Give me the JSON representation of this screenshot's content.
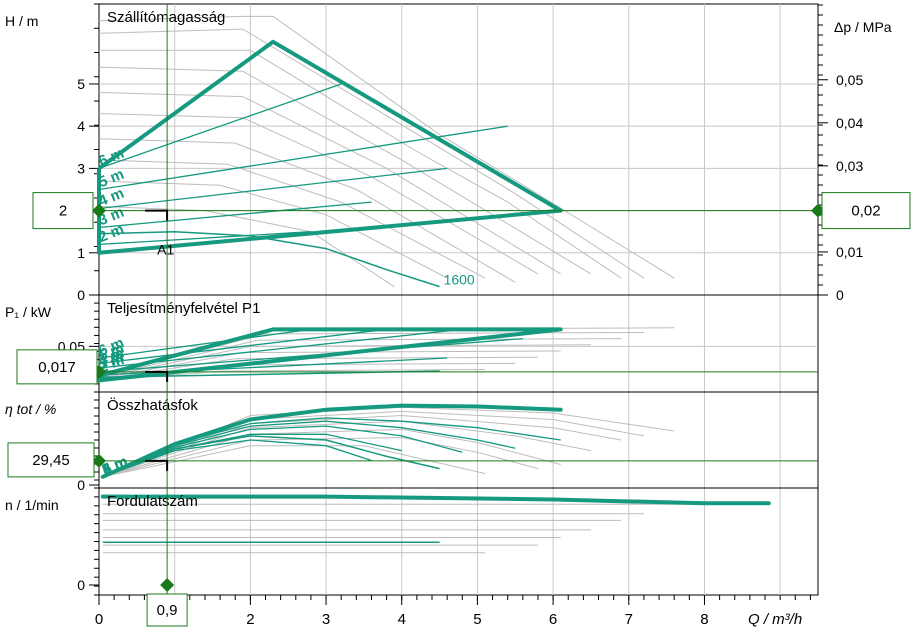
{
  "chart_data": {
    "type": "line",
    "xlabel": "Q / m³/h",
    "x_ticks": [
      "0",
      "1",
      "2",
      "3",
      "4",
      "5",
      "6",
      "7",
      "8"
    ],
    "xlim": [
      0,
      9.5
    ],
    "operating_point": {
      "q": "0,9",
      "head": "2",
      "dp": "0,02",
      "power": "0,017",
      "efficiency": "29,45",
      "label": "A1"
    },
    "accent_color": "#15997f",
    "marker_color": "#1a7a1a",
    "grid_color": "#c8c8c8",
    "panels": [
      {
        "id": "head",
        "title": "Szállítómagasság",
        "ylabel": "H / m",
        "ylabel_right": "Δp / MPa",
        "ylim": [
          0,
          6.8
        ],
        "y_ticks": [
          {
            "v": 0,
            "t": "0"
          },
          {
            "v": 1,
            "t": "1"
          },
          {
            "v": 2,
            "t": "2"
          },
          {
            "v": 3,
            "t": "3"
          },
          {
            "v": 4,
            "t": "4"
          },
          {
            "v": 5,
            "t": "5"
          }
        ],
        "y_ticks_right": [
          {
            "v": 0,
            "t": "0"
          },
          {
            "v": 1.02,
            "t": "0,01"
          },
          {
            "v": 2.04,
            "t": "0,02"
          },
          {
            "v": 3.06,
            "t": "0,03"
          },
          {
            "v": 4.08,
            "t": "0,04"
          },
          {
            "v": 5.1,
            "t": "0,05"
          }
        ],
        "envelope": [
          [
            0,
            3.0
          ],
          [
            2.3,
            6.0
          ],
          [
            6.1,
            2.0
          ],
          [
            0,
            1.0
          ]
        ],
        "setpoint_lines": [
          {
            "label": "2 m",
            "pts": [
              [
                0,
                1.2
              ],
              [
                2.8,
                1.5
              ]
            ]
          },
          {
            "label": "3 m",
            "pts": [
              [
                0,
                1.6
              ],
              [
                3.6,
                2.2
              ]
            ]
          },
          {
            "label": "4 m",
            "pts": [
              [
                0,
                2.05
              ],
              [
                4.6,
                3.0
              ]
            ]
          },
          {
            "label": "5 m",
            "pts": [
              [
                0,
                2.5
              ],
              [
                5.4,
                4.0
              ]
            ]
          },
          {
            "label": "6 m",
            "pts": [
              [
                0,
                3.0
              ],
              [
                3.2,
                5.0
              ]
            ]
          }
        ],
        "speed_curve": {
          "label": "1600",
          "pts": [
            [
              0,
              1.45
            ],
            [
              1,
              1.5
            ],
            [
              2,
              1.4
            ],
            [
              3,
              1.1
            ],
            [
              3.8,
              0.6
            ],
            [
              4.5,
              0.2
            ]
          ]
        },
        "grey_curves": [
          [
            [
              0,
              6.5
            ],
            [
              1.9,
              6.6
            ],
            [
              2.3,
              6.6
            ],
            [
              4.5,
              3.8
            ],
            [
              5.7,
              2.5
            ],
            [
              7.6,
              0.4
            ]
          ],
          [
            [
              0,
              6.2
            ],
            [
              1.9,
              6.3
            ],
            [
              4.4,
              3.6
            ],
            [
              5.5,
              2.4
            ],
            [
              7.2,
              0.4
            ]
          ],
          [
            [
              0,
              5.8
            ],
            [
              2.0,
              5.8
            ],
            [
              4.2,
              3.4
            ],
            [
              5.4,
              2.2
            ],
            [
              6.9,
              0.4
            ]
          ],
          [
            [
              0,
              5.4
            ],
            [
              1.9,
              5.3
            ],
            [
              4.0,
              3.2
            ],
            [
              6.5,
              0.5
            ]
          ],
          [
            [
              0,
              4.8
            ],
            [
              1.9,
              4.7
            ],
            [
              3.8,
              3.0
            ],
            [
              6.1,
              0.5
            ]
          ],
          [
            [
              0,
              4.3
            ],
            [
              1.9,
              4.2
            ],
            [
              3.6,
              2.8
            ],
            [
              5.8,
              0.5
            ]
          ],
          [
            [
              0,
              3.7
            ],
            [
              1.8,
              3.6
            ],
            [
              3.4,
              2.5
            ],
            [
              5.5,
              0.3
            ]
          ],
          [
            [
              0,
              3.2
            ],
            [
              1.7,
              3.1
            ],
            [
              3.2,
              2.2
            ],
            [
              5.1,
              0.4
            ]
          ],
          [
            [
              0,
              2.7
            ],
            [
              1.6,
              2.6
            ],
            [
              3.0,
              1.9
            ],
            [
              4.6,
              0.4
            ]
          ],
          [
            [
              0,
              2.1
            ],
            [
              1.4,
              2.0
            ],
            [
              2.8,
              1.5
            ],
            [
              3.9,
              0.2
            ]
          ]
        ]
      },
      {
        "id": "power",
        "title": "Teljesítményfelvétel P1",
        "ylabel": "P₁ / kW",
        "ylim": [
          0,
          0.11
        ],
        "y_ticks": [
          {
            "v": 0.05,
            "t": "0,05"
          }
        ],
        "envelope": [
          [
            0,
            0.012
          ],
          [
            2.3,
            0.072
          ],
          [
            6.1,
            0.072
          ],
          [
            0,
            0.006
          ]
        ],
        "setpoint_lines": [
          {
            "label": "6 m",
            "pts": [
              [
                0,
                0.035
              ],
              [
                2.8,
                0.072
              ]
            ]
          },
          {
            "label": "5 m",
            "pts": [
              [
                0,
                0.028
              ],
              [
                3.8,
                0.072
              ]
            ]
          },
          {
            "label": "4 m",
            "pts": [
              [
                0,
                0.022
              ],
              [
                4.8,
                0.072
              ]
            ]
          },
          {
            "label": "3 m",
            "pts": [
              [
                0,
                0.017
              ],
              [
                5.6,
                0.06
              ]
            ]
          },
          {
            "label": "2 m",
            "pts": [
              [
                0,
                0.013
              ],
              [
                4.6,
                0.035
              ]
            ]
          }
        ],
        "speed_curve": {
          "label": "",
          "pts": [
            [
              0,
              0.01
            ],
            [
              4.5,
              0.018
            ]
          ]
        },
        "grey_curves": [
          [
            [
              0,
              0.012
            ],
            [
              2.3,
              0.072
            ],
            [
              7.6,
              0.074
            ]
          ],
          [
            [
              0,
              0.011
            ],
            [
              2.2,
              0.066
            ],
            [
              7.2,
              0.068
            ]
          ],
          [
            [
              0,
              0.01
            ],
            [
              2.1,
              0.058
            ],
            [
              6.9,
              0.06
            ]
          ],
          [
            [
              0,
              0.009
            ],
            [
              2.0,
              0.05
            ],
            [
              6.5,
              0.052
            ]
          ],
          [
            [
              0,
              0.008
            ],
            [
              1.9,
              0.042
            ],
            [
              6.1,
              0.044
            ]
          ],
          [
            [
              0,
              0.007
            ],
            [
              1.8,
              0.034
            ],
            [
              5.8,
              0.036
            ]
          ],
          [
            [
              0,
              0.006
            ],
            [
              1.7,
              0.026
            ],
            [
              5.5,
              0.028
            ]
          ],
          [
            [
              0,
              0.005
            ],
            [
              1.6,
              0.018
            ],
            [
              5.1,
              0.02
            ]
          ]
        ]
      },
      {
        "id": "efficiency",
        "title": "Összhatásfok",
        "ylabel": "η tot / %",
        "ylim": [
          0,
          110
        ],
        "y_ticks": [
          {
            "v": 0,
            "t": "0"
          }
        ],
        "envelope_top": [
          [
            0.05,
            10
          ],
          [
            1,
            50
          ],
          [
            2,
            80
          ],
          [
            3,
            92
          ],
          [
            4,
            97
          ],
          [
            5,
            96
          ],
          [
            6.1,
            92
          ]
        ],
        "setpoint_lines": [
          {
            "label": "6 m",
            "pts": [
              [
                0.05,
                10
              ],
              [
                1,
                50
              ],
              [
                2,
                75
              ],
              [
                3,
                82
              ],
              [
                4,
                78
              ],
              [
                5,
                70
              ],
              [
                6.1,
                55
              ]
            ]
          },
          {
            "label": "5 m",
            "pts": [
              [
                0.05,
                10
              ],
              [
                1,
                48
              ],
              [
                2,
                72
              ],
              [
                3,
                78
              ],
              [
                4,
                70
              ],
              [
                5,
                55
              ],
              [
                5.5,
                45
              ]
            ]
          },
          {
            "label": "4 m",
            "pts": [
              [
                0.05,
                10
              ],
              [
                1,
                46
              ],
              [
                2,
                68
              ],
              [
                3,
                72
              ],
              [
                4,
                60
              ],
              [
                4.8,
                40
              ]
            ]
          },
          {
            "label": "3 m",
            "pts": [
              [
                0.05,
                10
              ],
              [
                1,
                44
              ],
              [
                2,
                62
              ],
              [
                3,
                62
              ],
              [
                4,
                42
              ]
            ]
          },
          {
            "label": "2 m",
            "pts": [
              [
                0.05,
                10
              ],
              [
                1,
                42
              ],
              [
                2,
                55
              ],
              [
                3,
                48
              ],
              [
                3.6,
                30
              ]
            ]
          }
        ],
        "speed_curve": {
          "label": "",
          "pts": [
            [
              0.05,
              10
            ],
            [
              1,
              44
            ],
            [
              2,
              60
            ],
            [
              3,
              55
            ],
            [
              3.8,
              35
            ],
            [
              4.5,
              20
            ]
          ]
        },
        "grey_curves": [
          [
            [
              0.05,
              10
            ],
            [
              2,
              85
            ],
            [
              4,
              95
            ],
            [
              6,
              88
            ],
            [
              7.6,
              66
            ]
          ],
          [
            [
              0.05,
              10
            ],
            [
              2,
              80
            ],
            [
              4,
              90
            ],
            [
              6,
              80
            ],
            [
              7.2,
              60
            ]
          ],
          [
            [
              0.05,
              10
            ],
            [
              2,
              75
            ],
            [
              4,
              85
            ],
            [
              6,
              70
            ],
            [
              6.9,
              55
            ]
          ],
          [
            [
              0.05,
              10
            ],
            [
              2,
              70
            ],
            [
              4,
              78
            ],
            [
              5.5,
              60
            ],
            [
              6.5,
              42
            ]
          ],
          [
            [
              0.05,
              10
            ],
            [
              2,
              62
            ],
            [
              4,
              68
            ],
            [
              5,
              52
            ],
            [
              6.1,
              25
            ]
          ],
          [
            [
              0.05,
              10
            ],
            [
              2,
              55
            ],
            [
              4,
              58
            ],
            [
              5,
              40
            ],
            [
              5.8,
              20
            ]
          ],
          [
            [
              0.05,
              10
            ],
            [
              2,
              48
            ],
            [
              3.5,
              48
            ],
            [
              5.1,
              14
            ]
          ]
        ]
      },
      {
        "id": "speed",
        "title": "Fordulatszám",
        "ylabel": "n / 1/min",
        "ylim": [
          0,
          100
        ],
        "y_ticks": [
          {
            "v": 0,
            "t": "0"
          }
        ],
        "envelope_top": [
          [
            0.05,
            93
          ],
          [
            3,
            93
          ],
          [
            6,
            90
          ],
          [
            8,
            86
          ],
          [
            8.85,
            86
          ]
        ],
        "setpoint_lines": [],
        "speed_curve": {
          "label": "",
          "pts": [
            [
              0.05,
              45
            ],
            [
              4.5,
              45
            ]
          ]
        },
        "grey_curves": [
          [
            [
              0.05,
              85
            ],
            [
              8,
              85
            ]
          ],
          [
            [
              0.05,
              75
            ],
            [
              7.2,
              75
            ]
          ],
          [
            [
              0.05,
              68
            ],
            [
              6.9,
              68
            ]
          ],
          [
            [
              0.05,
              58
            ],
            [
              6.5,
              58
            ]
          ],
          [
            [
              0.05,
              50
            ],
            [
              6.1,
              50
            ]
          ],
          [
            [
              0.05,
              42
            ],
            [
              5.8,
              42
            ]
          ],
          [
            [
              0.05,
              34
            ],
            [
              5.1,
              34
            ]
          ]
        ]
      }
    ]
  }
}
